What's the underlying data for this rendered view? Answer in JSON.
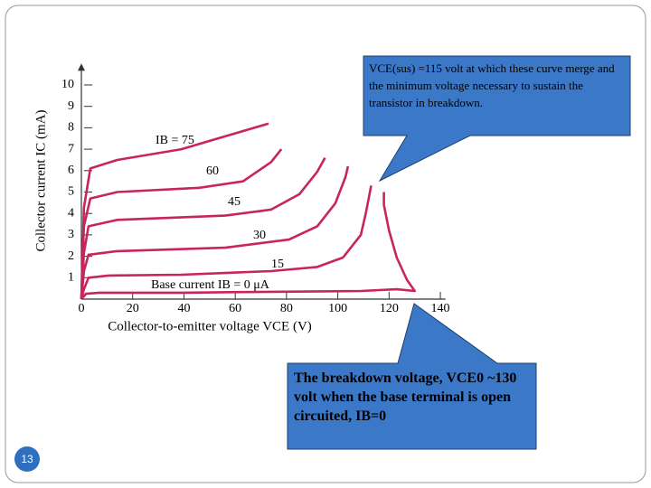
{
  "chart_data": {
    "type": "line",
    "x_label": "Collector-to-emitter voltage VCE (V)",
    "y_label": "Collector current IC (mA)",
    "xlim": [
      0,
      142
    ],
    "ylim": [
      0,
      11
    ],
    "xticks": [
      0,
      20,
      40,
      60,
      80,
      100,
      120,
      140
    ],
    "yticks": [
      1,
      2,
      3,
      4,
      5,
      6,
      7,
      8,
      9,
      10
    ],
    "series": [
      {
        "name": "IB = 75",
        "color": "#c8245e",
        "x": [
          0,
          1,
          3.5,
          14,
          39,
          56,
          73
        ],
        "values": [
          0,
          4.26,
          6.1,
          6.5,
          7.0,
          7.6,
          8.2
        ]
      },
      {
        "name": "60",
        "color": "#c8245e",
        "x": [
          0,
          1,
          3.5,
          14,
          46,
          63,
          74,
          78
        ],
        "values": [
          0,
          3.4,
          4.7,
          5.0,
          5.2,
          5.5,
          6.4,
          7.0
        ]
      },
      {
        "name": "45",
        "color": "#c8245e",
        "x": [
          0,
          1,
          2.8,
          14,
          56,
          74,
          85,
          92,
          95
        ],
        "values": [
          0,
          2.15,
          3.4,
          3.7,
          3.9,
          4.18,
          4.9,
          5.95,
          6.6
        ]
      },
      {
        "name": "30",
        "color": "#c8245e",
        "x": [
          0,
          1,
          2.8,
          14,
          56,
          81,
          92,
          99,
          103,
          104
        ],
        "values": [
          0,
          1.3,
          2.07,
          2.24,
          2.4,
          2.78,
          3.4,
          4.47,
          5.7,
          6.2
        ]
      },
      {
        "name": "15",
        "color": "#c8245e",
        "x": [
          0,
          1,
          2.8,
          10.6,
          39,
          74,
          92,
          102,
          109,
          111,
          113
        ],
        "values": [
          0,
          0.46,
          1.0,
          1.1,
          1.14,
          1.31,
          1.5,
          1.94,
          3.0,
          4.05,
          5.3
        ]
      },
      {
        "name": "Base current IB = 0 μA",
        "color": "#c8245e",
        "x": [
          0,
          1.8,
          7,
          39,
          74,
          109,
          123,
          130,
          127,
          123,
          120,
          118,
          118
        ],
        "values": [
          0,
          0.25,
          0.3,
          0.3,
          0.34,
          0.38,
          0.46,
          0.38,
          0.89,
          1.94,
          3.2,
          4.4,
          5.0
        ]
      }
    ],
    "annotations": [
      "VCE(sus) =115 volt at which these curve merge and the minimum voltage necessary to sustain the transistor in breakdown.",
      "The breakdown voltage, VCE0 ~130 volt when the base terminal is open circuited, IB=0"
    ]
  },
  "slide_number": "13"
}
